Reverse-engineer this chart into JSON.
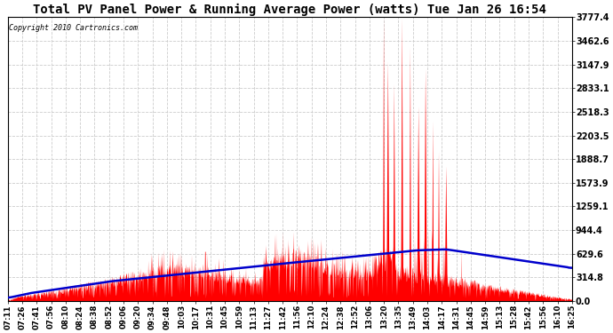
{
  "title": "Total PV Panel Power & Running Average Power (watts) Tue Jan 26 16:54",
  "copyright": "Copyright 2010 Cartronics.com",
  "background_color": "#ffffff",
  "fill_color": "#ff0000",
  "line_color": "#0000cc",
  "grid_color": "#cccccc",
  "yticks": [
    0.0,
    314.8,
    629.6,
    944.4,
    1259.1,
    1573.9,
    1888.7,
    2203.5,
    2518.3,
    2833.1,
    3147.9,
    3462.6,
    3777.4
  ],
  "xtick_labels": [
    "07:11",
    "07:26",
    "07:41",
    "07:56",
    "08:10",
    "08:24",
    "08:38",
    "08:52",
    "09:06",
    "09:20",
    "09:34",
    "09:48",
    "10:03",
    "10:17",
    "10:31",
    "10:45",
    "10:59",
    "11:13",
    "11:27",
    "11:42",
    "11:56",
    "12:10",
    "12:24",
    "12:38",
    "12:52",
    "13:06",
    "13:20",
    "13:35",
    "13:49",
    "14:03",
    "14:17",
    "14:31",
    "14:45",
    "14:59",
    "15:13",
    "15:28",
    "15:42",
    "15:56",
    "16:10",
    "16:25"
  ],
  "ymax": 3777.4,
  "ymin": 0.0,
  "figwidth": 6.9,
  "figheight": 3.75,
  "dpi": 100,
  "total_minutes": 554
}
